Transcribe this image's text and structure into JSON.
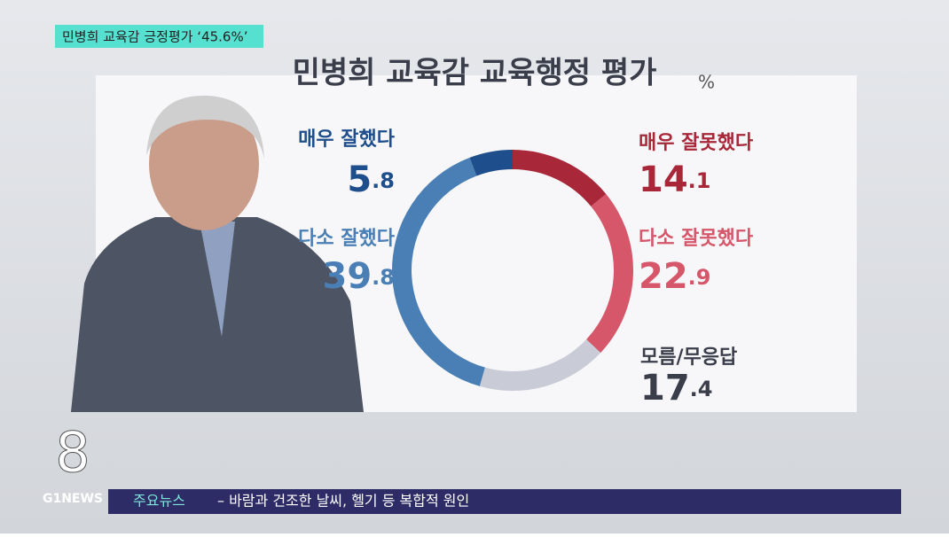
{
  "caption": "민병희 교육감 긍정평가 ‘45.6%’",
  "chart_data": {
    "type": "donut",
    "title": "민병희 교육감 교육행정 평가",
    "unit": "%",
    "categories": [
      "매우 잘못했다",
      "다소 잘못했다",
      "모름/무응답",
      "다소 잘했다",
      "매우 잘했다"
    ],
    "values": [
      14.1,
      22.9,
      17.4,
      39.8,
      5.8
    ],
    "colors": [
      "#a8283a",
      "#d6566a",
      "#c9ccd6",
      "#4a7fb5",
      "#1f4e8c"
    ]
  },
  "logo": {
    "channel": "8",
    "name": "G1NEWS"
  },
  "ticker": {
    "label": "주요뉴스",
    "text": "– 바람과 건조한 날씨, 헬기 등 복합적 원인"
  }
}
